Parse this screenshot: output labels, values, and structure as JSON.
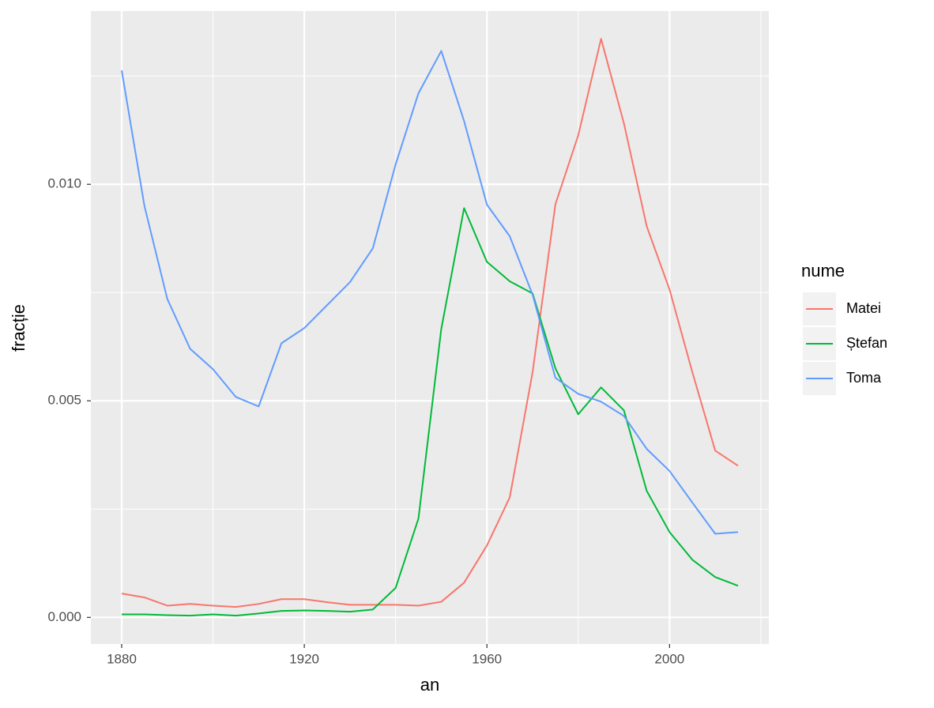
{
  "chart_data": {
    "type": "line",
    "x_label": "an",
    "y_label": "fracție",
    "legend_title": "nume",
    "legend": "right",
    "grid": true,
    "x": [
      1880,
      1885,
      1890,
      1895,
      1900,
      1905,
      1910,
      1915,
      1920,
      1925,
      1930,
      1935,
      1940,
      1945,
      1950,
      1955,
      1960,
      1965,
      1970,
      1975,
      1980,
      1985,
      1990,
      1995,
      2000,
      2005,
      2010,
      2015
    ],
    "series": [
      {
        "name": "Matei",
        "color": "#F8766D",
        "values": [
          0.00055,
          0.00046,
          0.00027,
          0.00031,
          0.00027,
          0.00024,
          0.00031,
          0.00042,
          0.00042,
          0.00035,
          0.00029,
          0.00029,
          0.00029,
          0.00027,
          0.00036,
          0.0008,
          0.00166,
          0.00277,
          0.00566,
          0.00954,
          0.01113,
          0.01336,
          0.01141,
          0.00903,
          0.00757,
          0.00566,
          0.00385,
          0.0035
        ]
      },
      {
        "name": "Ștefan",
        "color": "#00BA38",
        "values": [
          7e-05,
          7e-05,
          5e-05,
          4e-05,
          7e-05,
          4e-05,
          9e-05,
          0.00015,
          0.00016,
          0.00015,
          0.00013,
          0.00018,
          0.00068,
          0.00228,
          0.00666,
          0.00945,
          0.00821,
          0.00776,
          0.00748,
          0.00575,
          0.00469,
          0.00531,
          0.00478,
          0.00292,
          0.00197,
          0.00133,
          0.00093,
          0.00073
        ]
      },
      {
        "name": "Toma",
        "color": "#619CFF",
        "values": [
          0.01263,
          0.00949,
          0.00735,
          0.0062,
          0.00573,
          0.00509,
          0.00487,
          0.00633,
          0.00668,
          0.00721,
          0.00774,
          0.00852,
          0.01046,
          0.0121,
          0.01308,
          0.01146,
          0.00953,
          0.0088,
          0.00745,
          0.00553,
          0.00516,
          0.00498,
          0.00465,
          0.00389,
          0.00338,
          0.00265,
          0.00193,
          0.00197
        ]
      }
    ],
    "xlim": [
      1873.25,
      2021.75
    ],
    "xticks": [
      1880,
      1920,
      1960,
      2000
    ],
    "ylim": [
      -0.000615,
      0.014
    ],
    "yticks": [
      {
        "value": 0,
        "label": "0.000"
      },
      {
        "value": 0.005,
        "label": "0.005"
      },
      {
        "value": 0.01,
        "label": "0.010"
      }
    ]
  }
}
